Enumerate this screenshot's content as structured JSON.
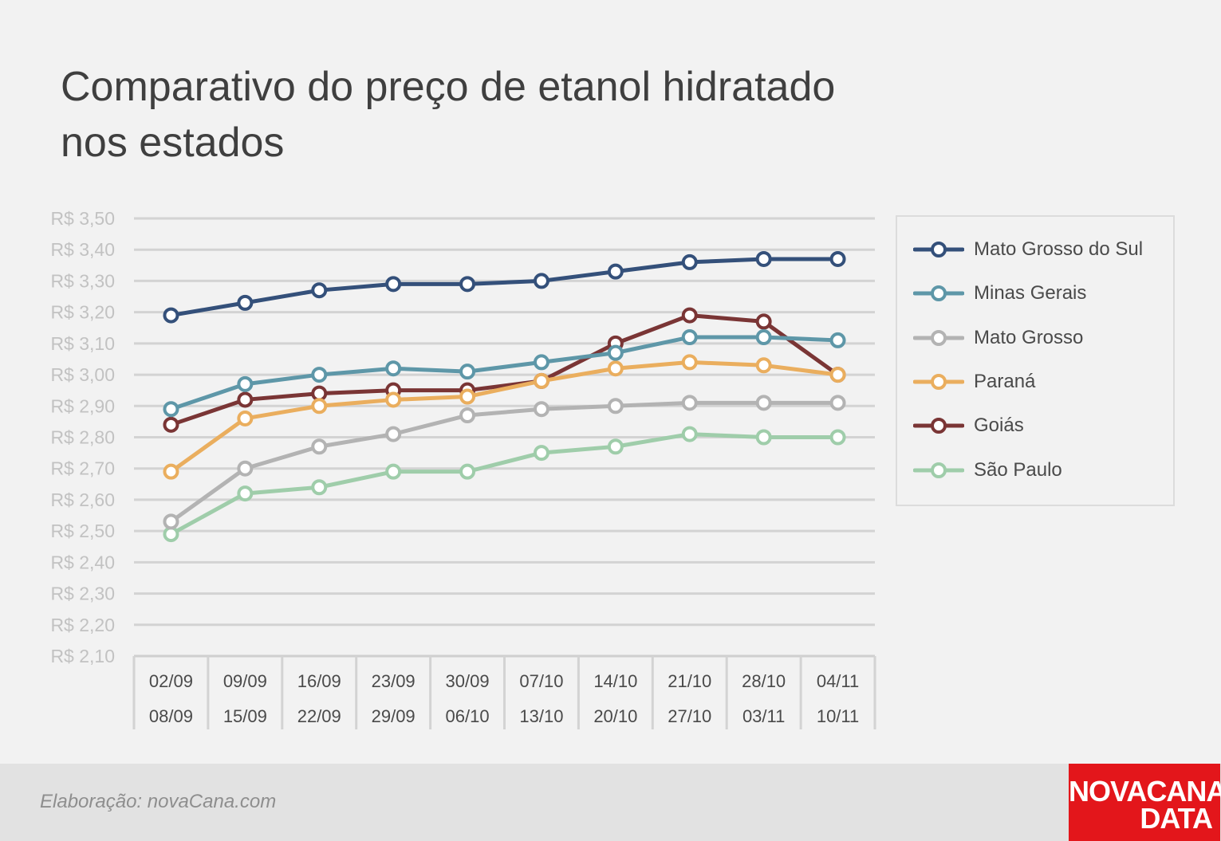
{
  "title": {
    "line1": "Comparativo do preço de etanol hidratado",
    "line2": "nos estados"
  },
  "chart_data": {
    "type": "line",
    "title": "Comparativo do preço de etanol hidratado nos estados",
    "categories": [
      [
        "02/09",
        "08/09"
      ],
      [
        "09/09",
        "15/09"
      ],
      [
        "16/09",
        "22/09"
      ],
      [
        "23/09",
        "29/09"
      ],
      [
        "30/09",
        "06/10"
      ],
      [
        "07/10",
        "13/10"
      ],
      [
        "14/10",
        "20/10"
      ],
      [
        "21/10",
        "27/10"
      ],
      [
        "28/10",
        "03/11"
      ],
      [
        "04/11",
        "10/11"
      ]
    ],
    "y_ticks": [
      "R$ 3,50",
      "R$ 3,40",
      "R$ 3,30",
      "R$ 3,20",
      "R$ 3,10",
      "R$ 3,00",
      "R$ 2,90",
      "R$ 2,80",
      "R$ 2,70",
      "R$ 2,60",
      "R$ 2,50",
      "R$ 2,40",
      "R$ 2,30",
      "R$ 2,20",
      "R$ 2,10"
    ],
    "ylim": [
      2.1,
      3.5
    ],
    "grid": true,
    "legend_position": "right",
    "series": [
      {
        "name": "Mato Grosso do Sul",
        "color": "#34507a",
        "values": [
          3.19,
          3.23,
          3.27,
          3.29,
          3.29,
          3.3,
          3.33,
          3.36,
          3.37,
          3.37
        ]
      },
      {
        "name": "Minas Gerais",
        "color": "#5e97a8",
        "values": [
          2.89,
          2.97,
          3.0,
          3.02,
          3.01,
          3.04,
          3.07,
          3.12,
          3.12,
          3.11
        ]
      },
      {
        "name": "Mato Grosso",
        "color": "#b3b3b3",
        "values": [
          2.53,
          2.7,
          2.77,
          2.81,
          2.87,
          2.89,
          2.9,
          2.91,
          2.91,
          2.91
        ]
      },
      {
        "name": "Paraná",
        "color": "#eaae5e",
        "values": [
          2.69,
          2.86,
          2.9,
          2.92,
          2.93,
          2.98,
          3.02,
          3.04,
          3.03,
          3.0
        ]
      },
      {
        "name": "Goiás",
        "color": "#7a3535",
        "values": [
          2.84,
          2.92,
          2.94,
          2.95,
          2.95,
          2.98,
          3.1,
          3.19,
          3.17,
          3.0
        ]
      },
      {
        "name": "São Paulo",
        "color": "#9fcdaa",
        "values": [
          2.49,
          2.62,
          2.64,
          2.69,
          2.69,
          2.75,
          2.77,
          2.81,
          2.8,
          2.8
        ]
      }
    ]
  },
  "footer": {
    "credit": "Elaboração: novaCana.com",
    "logo_line1": "NOVACANA",
    "logo_line2": "DATA"
  }
}
